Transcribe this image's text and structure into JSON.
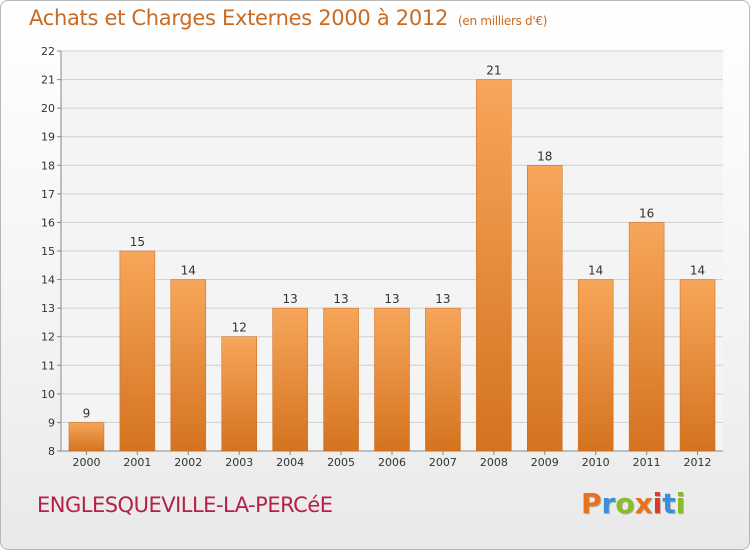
{
  "title": "Achats et Charges Externes 2000 à 2012",
  "subtitle": "(en milliers d'€)",
  "city": "ENGLESQUEVILLE-LA-PERCéE",
  "logo": {
    "letters": [
      "P",
      "r",
      "o",
      "x",
      "i",
      "t",
      "i"
    ],
    "colors": [
      "#e8731c",
      "#3b8ed8",
      "#8cbb2a",
      "#e8731c",
      "#d93a2a",
      "#3b8ed8",
      "#8cbb2a"
    ]
  },
  "colors": {
    "bar_light": "#f7a65a",
    "bar_dark": "#d4731f",
    "text_accent": "#c96b22",
    "city": "#b5204a"
  },
  "chart_data": {
    "type": "bar",
    "title": "Achats et Charges Externes 2000 à 2012",
    "subtitle": "(en milliers d'€)",
    "categories": [
      "2000",
      "2001",
      "2002",
      "2003",
      "2004",
      "2005",
      "2006",
      "2007",
      "2008",
      "2009",
      "2010",
      "2011",
      "2012"
    ],
    "values": [
      9,
      15,
      14,
      12,
      13,
      13,
      13,
      13,
      21,
      18,
      14,
      16,
      14
    ],
    "ylim": [
      8,
      22
    ],
    "yticks": [
      8,
      9,
      10,
      11,
      12,
      13,
      14,
      15,
      16,
      17,
      18,
      19,
      20,
      21,
      22
    ],
    "grid": true,
    "xlabel": "",
    "ylabel": ""
  }
}
